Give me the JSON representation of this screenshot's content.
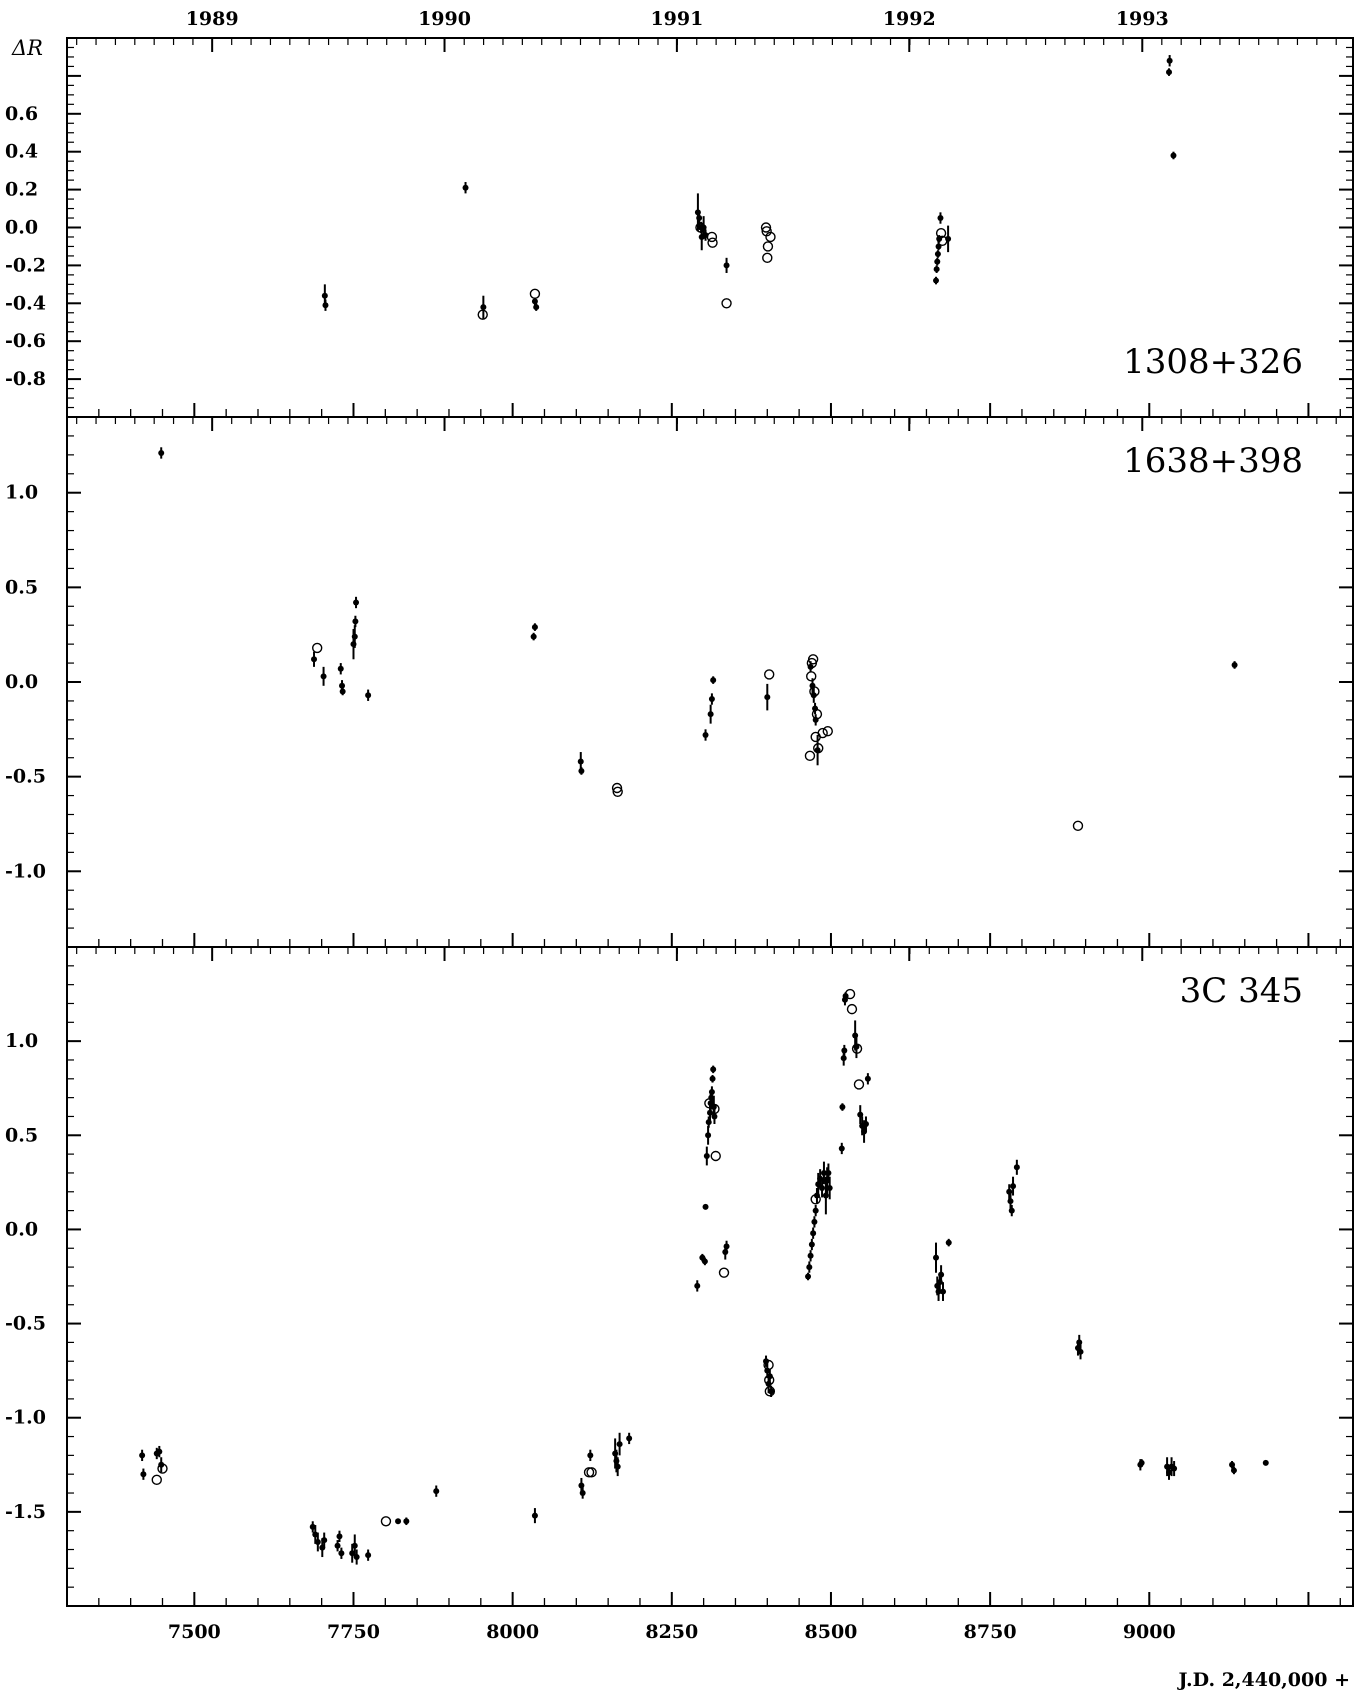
{
  "chart_data": {
    "type": "scatter",
    "ylabel": "ΔR",
    "xlabel": "J.D. 2,440,000 +",
    "xlim": [
      7300,
      9320
    ],
    "x_ticks": [
      "7500",
      "7750",
      "8000",
      "8250",
      "8500",
      "8750",
      "9000"
    ],
    "year_ticks": [
      {
        "label": "1989",
        "jd": 7528
      },
      {
        "label": "1990",
        "jd": 7893
      },
      {
        "label": "1991",
        "jd": 8258
      },
      {
        "label": "1992",
        "jd": 8623
      },
      {
        "label": "1993",
        "jd": 8989
      }
    ],
    "panels": [
      {
        "name": "1308+326",
        "ylim": [
          -1.0,
          1.0
        ],
        "y_ticks": [
          "0.6",
          "0.4",
          "0.2",
          "0.0",
          "-0.2",
          "-0.4",
          "-0.6",
          "-0.8"
        ],
        "filled": [
          [
            7705,
            -0.36,
            0.06
          ],
          [
            7706,
            -0.41,
            0.03
          ],
          [
            7926,
            0.21,
            0.03
          ],
          [
            7954,
            -0.42,
            0.06
          ],
          [
            8035,
            -0.39,
            0.02
          ],
          [
            8037,
            -0.42,
            0.02
          ],
          [
            8291,
            0.08,
            0.1
          ],
          [
            8293,
            0.05,
            0.04
          ],
          [
            8296,
            0.0,
            0.03
          ],
          [
            8297,
            -0.05,
            0.07
          ],
          [
            8300,
            0.0,
            0.06
          ],
          [
            8303,
            -0.04,
            0.03
          ],
          [
            8336,
            -0.2,
            0.04
          ],
          [
            8665,
            -0.28,
            0.02
          ],
          [
            8666,
            -0.22,
            0.02
          ],
          [
            8667,
            -0.18,
            0.02
          ],
          [
            8668,
            -0.14,
            0.02
          ],
          [
            8669,
            -0.1,
            0.02
          ],
          [
            8670,
            -0.06,
            0.02
          ],
          [
            8672,
            0.05,
            0.03
          ],
          [
            8684,
            -0.06,
            0.07
          ],
          [
            9032,
            0.88,
            0.03
          ],
          [
            9031,
            0.82,
            0.02
          ],
          [
            9038,
            0.38,
            0.02
          ]
        ],
        "open": [
          [
            7953,
            -0.46
          ],
          [
            8035,
            -0.35
          ],
          [
            8295,
            0.0
          ],
          [
            8313,
            -0.05
          ],
          [
            8314,
            -0.08
          ],
          [
            8336,
            -0.4
          ],
          [
            8398,
            0.0
          ],
          [
            8399,
            -0.02
          ],
          [
            8405,
            -0.05
          ],
          [
            8401,
            -0.1
          ],
          [
            8400,
            -0.16
          ],
          [
            8673,
            -0.03
          ],
          [
            8675,
            -0.07
          ]
        ]
      },
      {
        "name": "1638+398",
        "ylim": [
          -1.4,
          1.4
        ],
        "y_ticks": [
          "1.0",
          "0.5",
          "0.0",
          "-0.5",
          "-1.0"
        ],
        "filled": [
          [
            7448,
            1.21,
            0.03
          ],
          [
            7688,
            0.12,
            0.04
          ],
          [
            7703,
            0.03,
            0.05
          ],
          [
            7730,
            0.07,
            0.03
          ],
          [
            7732,
            -0.02,
            0.03
          ],
          [
            7733,
            -0.05,
            0.02
          ],
          [
            7750,
            0.2,
            0.08
          ],
          [
            7752,
            0.24,
            0.06
          ],
          [
            7753,
            0.32,
            0.03
          ],
          [
            7754,
            0.42,
            0.03
          ],
          [
            7773,
            -0.07,
            0.03
          ],
          [
            8033,
            0.24,
            0.02
          ],
          [
            8035,
            0.29,
            0.02
          ],
          [
            8107,
            -0.42,
            0.05
          ],
          [
            8108,
            -0.47,
            0.02
          ],
          [
            8303,
            -0.28,
            0.03
          ],
          [
            8311,
            -0.17,
            0.05
          ],
          [
            8313,
            -0.09,
            0.03
          ],
          [
            8315,
            0.01,
            0.02
          ],
          [
            8400,
            -0.08,
            0.07
          ],
          [
            8468,
            0.08,
            0.03
          ],
          [
            8471,
            -0.02,
            0.04
          ],
          [
            8473,
            -0.07,
            0.04
          ],
          [
            8475,
            -0.14,
            0.03
          ],
          [
            8476,
            -0.2,
            0.03
          ],
          [
            8479,
            -0.36,
            0.08
          ],
          [
            9134,
            0.09,
            0.02
          ]
        ],
        "open": [
          [
            7693,
            0.18
          ],
          [
            8164,
            -0.56
          ],
          [
            8165,
            -0.58
          ],
          [
            8403,
            0.04
          ],
          [
            8467,
            -0.39
          ],
          [
            8469,
            0.03
          ],
          [
            8470,
            0.1
          ],
          [
            8472,
            0.12
          ],
          [
            8474,
            -0.05
          ],
          [
            8476,
            -0.29
          ],
          [
            8478,
            -0.17
          ],
          [
            8480,
            -0.35
          ],
          [
            8487,
            -0.27
          ],
          [
            8495,
            -0.26
          ],
          [
            8888,
            -0.76
          ]
        ]
      },
      {
        "name": "3C 345",
        "ylim": [
          -2.0,
          1.5
        ],
        "y_ticks": [
          "1.0",
          "0.5",
          "0.0",
          "-0.5",
          "-1.0",
          "-1.5"
        ],
        "filled": [
          [
            7418,
            -1.2,
            0.03
          ],
          [
            7420,
            -1.3,
            0.03
          ],
          [
            7441,
            -1.19,
            0.03
          ],
          [
            7445,
            -1.18,
            0.03
          ],
          [
            7448,
            -1.25,
            0.04
          ],
          [
            7686,
            -1.58,
            0.03
          ],
          [
            7690,
            -1.62,
            0.05
          ],
          [
            7694,
            -1.66,
            0.05
          ],
          [
            7701,
            -1.69,
            0.05
          ],
          [
            7704,
            -1.65,
            0.04
          ],
          [
            7725,
            -1.68,
            0.03
          ],
          [
            7728,
            -1.63,
            0.03
          ],
          [
            7731,
            -1.72,
            0.03
          ],
          [
            7748,
            -1.72,
            0.05
          ],
          [
            7752,
            -1.68,
            0.06
          ],
          [
            7755,
            -1.74,
            0.04
          ],
          [
            7773,
            -1.73,
            0.03
          ],
          [
            7820,
            -1.55,
            0.01
          ],
          [
            7833,
            -1.55,
            0.02
          ],
          [
            7880,
            -1.39,
            0.03
          ],
          [
            8035,
            -1.52,
            0.04
          ],
          [
            8108,
            -1.36,
            0.04
          ],
          [
            8110,
            -1.4,
            0.03
          ],
          [
            8122,
            -1.2,
            0.03
          ],
          [
            8161,
            -1.19,
            0.08
          ],
          [
            8163,
            -1.23,
            0.06
          ],
          [
            8165,
            -1.26,
            0.05
          ],
          [
            8168,
            -1.14,
            0.06
          ],
          [
            8183,
            -1.11,
            0.03
          ],
          [
            8290,
            -0.3,
            0.03
          ],
          [
            8298,
            -0.15,
            0.02
          ],
          [
            8302,
            -0.17,
            0.02
          ],
          [
            8303,
            0.12,
            0.01
          ],
          [
            8305,
            0.39,
            0.05
          ],
          [
            8307,
            0.5,
            0.05
          ],
          [
            8308,
            0.57,
            0.03
          ],
          [
            8310,
            0.62,
            0.04
          ],
          [
            8311,
            0.67,
            0.05
          ],
          [
            8312,
            0.7,
            0.04
          ],
          [
            8313,
            0.73,
            0.03
          ],
          [
            8314,
            0.8,
            0.02
          ],
          [
            8315,
            0.85,
            0.02
          ],
          [
            8316,
            0.65,
            0.06
          ],
          [
            8317,
            0.6,
            0.04
          ],
          [
            8334,
            -0.12,
            0.04
          ],
          [
            8336,
            -0.09,
            0.03
          ],
          [
            8398,
            -0.7,
            0.03
          ],
          [
            8400,
            -0.75,
            0.04
          ],
          [
            8402,
            -0.82,
            0.05
          ],
          [
            8404,
            -0.78,
            0.04
          ],
          [
            8406,
            -0.86,
            0.03
          ],
          [
            8464,
            -0.25,
            0.02
          ],
          [
            8466,
            -0.2,
            0.03
          ],
          [
            8468,
            -0.14,
            0.03
          ],
          [
            8470,
            -0.08,
            0.03
          ],
          [
            8472,
            -0.02,
            0.03
          ],
          [
            8474,
            0.04,
            0.03
          ],
          [
            8476,
            0.1,
            0.03
          ],
          [
            8478,
            0.18,
            0.04
          ],
          [
            8480,
            0.24,
            0.06
          ],
          [
            8483,
            0.27,
            0.05
          ],
          [
            8486,
            0.22,
            0.05
          ],
          [
            8489,
            0.3,
            0.06
          ],
          [
            8492,
            0.18,
            0.1
          ],
          [
            8494,
            0.26,
            0.07
          ],
          [
            8496,
            0.3,
            0.05
          ],
          [
            8498,
            0.22,
            0.06
          ],
          [
            8517,
            0.43,
            0.03
          ],
          [
            8518,
            0.65,
            0.02
          ],
          [
            8520,
            0.91,
            0.04
          ],
          [
            8521,
            0.95,
            0.03
          ],
          [
            8522,
            1.22,
            0.03
          ],
          [
            8523,
            1.24,
            0.02
          ],
          [
            8538,
            1.03,
            0.08
          ],
          [
            8540,
            0.97,
            0.06
          ],
          [
            8546,
            0.61,
            0.05
          ],
          [
            8549,
            0.55,
            0.05
          ],
          [
            8552,
            0.52,
            0.06
          ],
          [
            8555,
            0.56,
            0.04
          ],
          [
            8558,
            0.8,
            0.03
          ],
          [
            8665,
            -0.15,
            0.08
          ],
          [
            8667,
            -0.3,
            0.05
          ],
          [
            8669,
            -0.33,
            0.05
          ],
          [
            8671,
            -0.28,
            0.05
          ],
          [
            8673,
            -0.24,
            0.05
          ],
          [
            8676,
            -0.33,
            0.05
          ],
          [
            8685,
            -0.07,
            0.02
          ],
          [
            8780,
            0.2,
            0.04
          ],
          [
            8782,
            0.15,
            0.04
          ],
          [
            8784,
            0.1,
            0.03
          ],
          [
            8786,
            0.23,
            0.05
          ],
          [
            8792,
            0.33,
            0.04
          ],
          [
            8888,
            -0.63,
            0.04
          ],
          [
            8890,
            -0.6,
            0.04
          ],
          [
            8892,
            -0.65,
            0.04
          ],
          [
            8986,
            -1.25,
            0.03
          ],
          [
            8988,
            -1.24,
            0.02
          ],
          [
            9028,
            -1.26,
            0.05
          ],
          [
            9031,
            -1.29,
            0.04
          ],
          [
            9035,
            -1.26,
            0.05
          ],
          [
            9039,
            -1.27,
            0.04
          ],
          [
            9130,
            -1.25,
            0.02
          ],
          [
            9133,
            -1.28,
            0.02
          ],
          [
            9183,
            -1.24,
            0.01
          ]
        ],
        "open": [
          [
            7441,
            -1.33
          ],
          [
            7450,
            -1.27
          ],
          [
            7801,
            -1.55
          ],
          [
            8120,
            -1.29
          ],
          [
            8124,
            -1.29
          ],
          [
            8309,
            0.67
          ],
          [
            8317,
            0.64
          ],
          [
            8319,
            0.39
          ],
          [
            8332,
            -0.23
          ],
          [
            8402,
            -0.72
          ],
          [
            8403,
            -0.8
          ],
          [
            8404,
            -0.86
          ],
          [
            8476,
            0.16
          ],
          [
            8530,
            1.25
          ],
          [
            8533,
            1.17
          ],
          [
            8541,
            0.96
          ],
          [
            8544,
            0.77
          ]
        ]
      }
    ]
  }
}
